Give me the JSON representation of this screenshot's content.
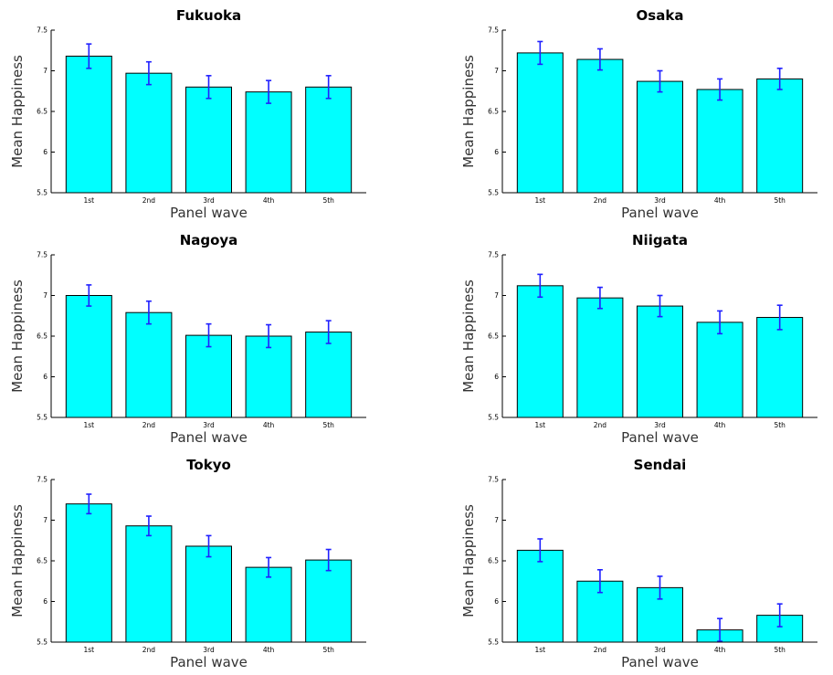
{
  "colors": {
    "bar_fill": "#00ffff",
    "bar_edge": "#000000",
    "error_bar": "#2020ff"
  },
  "chart_data": [
    {
      "type": "bar",
      "title": "Fukuoka",
      "xlabel": "Panel wave",
      "ylabel": "Mean Happiness",
      "categories": [
        "1st",
        "2nd",
        "3rd",
        "4th",
        "5th"
      ],
      "values": [
        7.18,
        6.97,
        6.8,
        6.74,
        6.8
      ],
      "errors": [
        0.15,
        0.14,
        0.14,
        0.14,
        0.14
      ],
      "ylim": [
        5.5,
        7.5
      ],
      "yticks": [
        "5.5",
        "6",
        "6.5",
        "7",
        "7.5"
      ]
    },
    {
      "type": "bar",
      "title": "Osaka",
      "xlabel": "Panel wave",
      "ylabel": "Mean Happiness",
      "categories": [
        "1st",
        "2nd",
        "3rd",
        "4th",
        "5th"
      ],
      "values": [
        7.22,
        7.14,
        6.87,
        6.77,
        6.9
      ],
      "errors": [
        0.14,
        0.13,
        0.13,
        0.13,
        0.13
      ],
      "ylim": [
        5.5,
        7.5
      ],
      "yticks": [
        "5.5",
        "6",
        "6.5",
        "7",
        "7.5"
      ]
    },
    {
      "type": "bar",
      "title": "Nagoya",
      "xlabel": "Panel wave",
      "ylabel": "Mean Happiness",
      "categories": [
        "1st",
        "2nd",
        "3rd",
        "4th",
        "5th"
      ],
      "values": [
        7.0,
        6.79,
        6.51,
        6.5,
        6.55
      ],
      "errors": [
        0.13,
        0.14,
        0.14,
        0.14,
        0.14
      ],
      "ylim": [
        5.5,
        7.5
      ],
      "yticks": [
        "5.5",
        "6",
        "6.5",
        "7",
        "7.5"
      ]
    },
    {
      "type": "bar",
      "title": "Niigata",
      "xlabel": "Panel wave",
      "ylabel": "Mean Happiness",
      "categories": [
        "1st",
        "2nd",
        "3rd",
        "4th",
        "5th"
      ],
      "values": [
        7.12,
        6.97,
        6.87,
        6.67,
        6.73
      ],
      "errors": [
        0.14,
        0.13,
        0.13,
        0.14,
        0.15
      ],
      "ylim": [
        5.5,
        7.5
      ],
      "yticks": [
        "5.5",
        "6",
        "6.5",
        "7",
        "7.5"
      ]
    },
    {
      "type": "bar",
      "title": "Tokyo",
      "xlabel": "Panel wave",
      "ylabel": "Mean Happiness",
      "categories": [
        "1st",
        "2nd",
        "3rd",
        "4th",
        "5th"
      ],
      "values": [
        7.2,
        6.93,
        6.68,
        6.42,
        6.51
      ],
      "errors": [
        0.12,
        0.12,
        0.13,
        0.12,
        0.13
      ],
      "ylim": [
        5.5,
        7.5
      ],
      "yticks": [
        "5.5",
        "6",
        "6.5",
        "7",
        "7.5"
      ]
    },
    {
      "type": "bar",
      "title": "Sendai",
      "xlabel": "Panel wave",
      "ylabel": "Mean Happiness",
      "categories": [
        "1st",
        "2nd",
        "3rd",
        "4th",
        "5th"
      ],
      "values": [
        6.63,
        6.25,
        6.17,
        5.65,
        5.83
      ],
      "errors": [
        0.14,
        0.14,
        0.14,
        0.14,
        0.14
      ],
      "ylim": [
        5.5,
        7.5
      ],
      "yticks": [
        "5.5",
        "6",
        "6.5",
        "7",
        "7.5"
      ]
    }
  ]
}
